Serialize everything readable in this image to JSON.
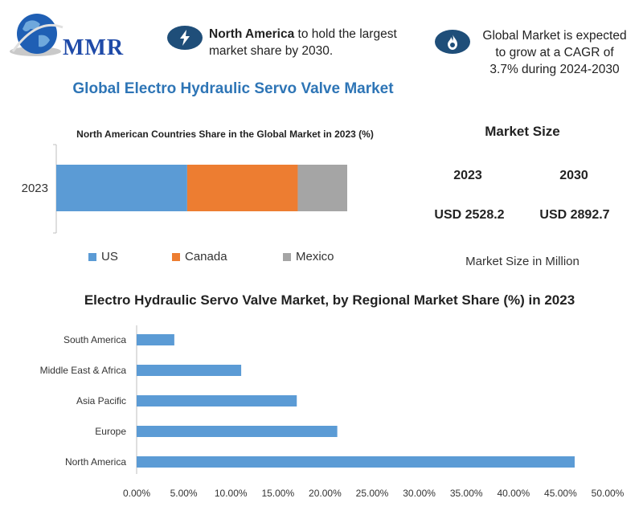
{
  "brand": {
    "logo_text": "MMR"
  },
  "highlights": {
    "region_bold": "North America",
    "region_rest": " to hold the largest market share by 2030.",
    "cagr_text": "Global Market is expected to grow at a CAGR of 3.7% during 2024-2030"
  },
  "icons": {
    "region_icon": "lightning-bolt-icon",
    "cagr_icon": "flame-icon",
    "logo_icon": "globe-icon"
  },
  "colors": {
    "accent_blue": "#2e75b6",
    "icon_bg": "#1f4e79",
    "us": "#5b9bd5",
    "canada": "#ed7d31",
    "mexico": "#a5a5a5",
    "bar": "#5b9bd5"
  },
  "page_title": "Global Electro Hydraulic Servo Valve Market",
  "market_size": {
    "title": "Market Size",
    "years": [
      "2023",
      "2030"
    ],
    "values": [
      "USD 2528.2",
      "USD 2892.7"
    ],
    "unit_note": "Market Size in Million"
  },
  "chart_data": [
    {
      "type": "bar",
      "orientation": "horizontal-stacked",
      "title": "North American Countries Share in the Global Market in 2023 (%)",
      "categories": [
        "2023"
      ],
      "series": [
        {
          "name": "US",
          "values": [
            45
          ]
        },
        {
          "name": "Canada",
          "values": [
            38
          ]
        },
        {
          "name": "Mexico",
          "values": [
            17
          ]
        }
      ],
      "legend": "bottom",
      "grid": false
    },
    {
      "type": "bar",
      "orientation": "horizontal",
      "title": "Electro Hydraulic Servo Valve Market, by Regional Market Share (%) in 2023",
      "categories": [
        "North America",
        "Europe",
        "Asia Pacific",
        "Middle East & Africa",
        "South America"
      ],
      "values": [
        46.5,
        21.3,
        17.0,
        11.1,
        4.0
      ],
      "xlim": [
        0,
        50
      ],
      "xticks": [
        "0.00%",
        "5.00%",
        "10.00%",
        "15.00%",
        "20.00%",
        "25.00%",
        "30.00%",
        "35.00%",
        "40.00%",
        "45.00%",
        "50.00%"
      ],
      "grid": false
    }
  ]
}
